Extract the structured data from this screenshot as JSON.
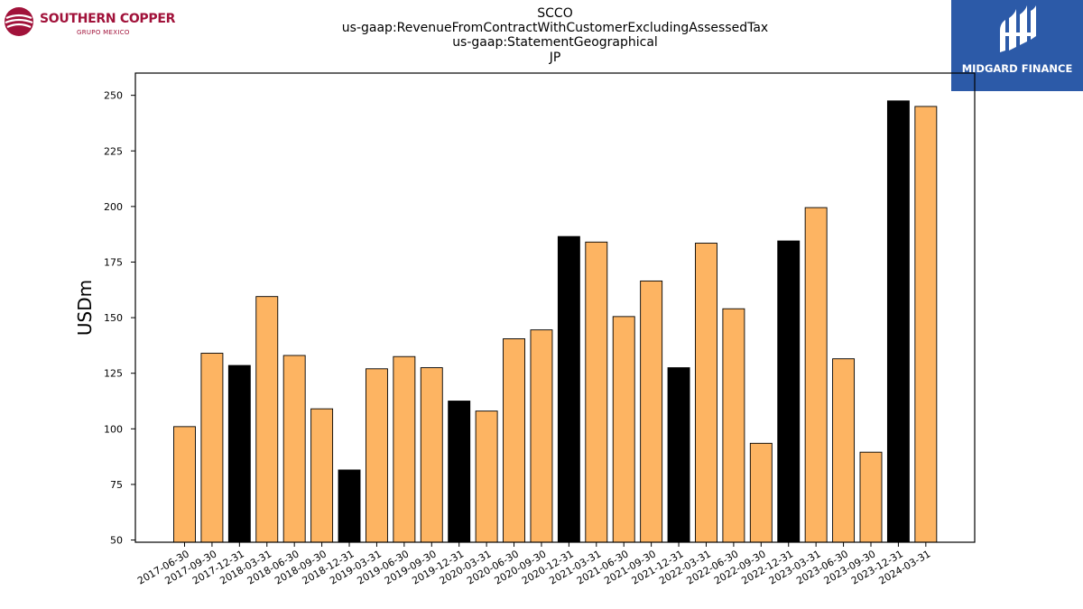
{
  "header": {
    "title_lines": [
      "SCCO",
      "us-gaap:RevenueFromContractWithCustomerExcludingAssessedTax",
      "us-gaap:StatementGeographical",
      "JP"
    ]
  },
  "logos": {
    "left_brand": "SOUTHERN COPPER",
    "left_sub": "GRUPO MEXICO",
    "right_brand": "MIDGARD FINANCE"
  },
  "colors": {
    "bar_default": "#fdb462",
    "bar_highlight": "#000000",
    "logo_left": "#a1123a",
    "logo_right_bg": "#2c5aa8"
  },
  "chart_data": {
    "type": "bar",
    "ylabel": "USDm",
    "ylim": [
      49,
      260
    ],
    "yticks": [
      50,
      75,
      100,
      125,
      150,
      175,
      200,
      225,
      250
    ],
    "categories": [
      "2017-06-30",
      "2017-09-30",
      "2017-12-31",
      "2018-03-31",
      "2018-06-30",
      "2018-09-30",
      "2018-12-31",
      "2019-03-31",
      "2019-06-30",
      "2019-09-30",
      "2019-12-31",
      "2020-03-31",
      "2020-06-30",
      "2020-09-30",
      "2020-12-31",
      "2021-03-31",
      "2021-06-30",
      "2021-09-30",
      "2021-12-31",
      "2022-03-31",
      "2022-06-30",
      "2022-09-30",
      "2022-12-31",
      "2023-03-31",
      "2023-06-30",
      "2023-09-30",
      "2023-12-31",
      "2024-03-31"
    ],
    "values": [
      101,
      134,
      128.5,
      159.5,
      133,
      109,
      81.5,
      127,
      132.5,
      127.5,
      112.5,
      108,
      140.5,
      144.5,
      186.5,
      184,
      150.5,
      166.5,
      127.5,
      183.5,
      154,
      93.5,
      184.5,
      199.5,
      131.5,
      89.5,
      247.5,
      245
    ],
    "highlight": [
      false,
      false,
      true,
      false,
      false,
      false,
      true,
      false,
      false,
      false,
      true,
      false,
      false,
      false,
      true,
      false,
      false,
      false,
      true,
      false,
      false,
      false,
      true,
      false,
      false,
      false,
      true,
      false
    ],
    "grid": false,
    "legend": "none"
  }
}
